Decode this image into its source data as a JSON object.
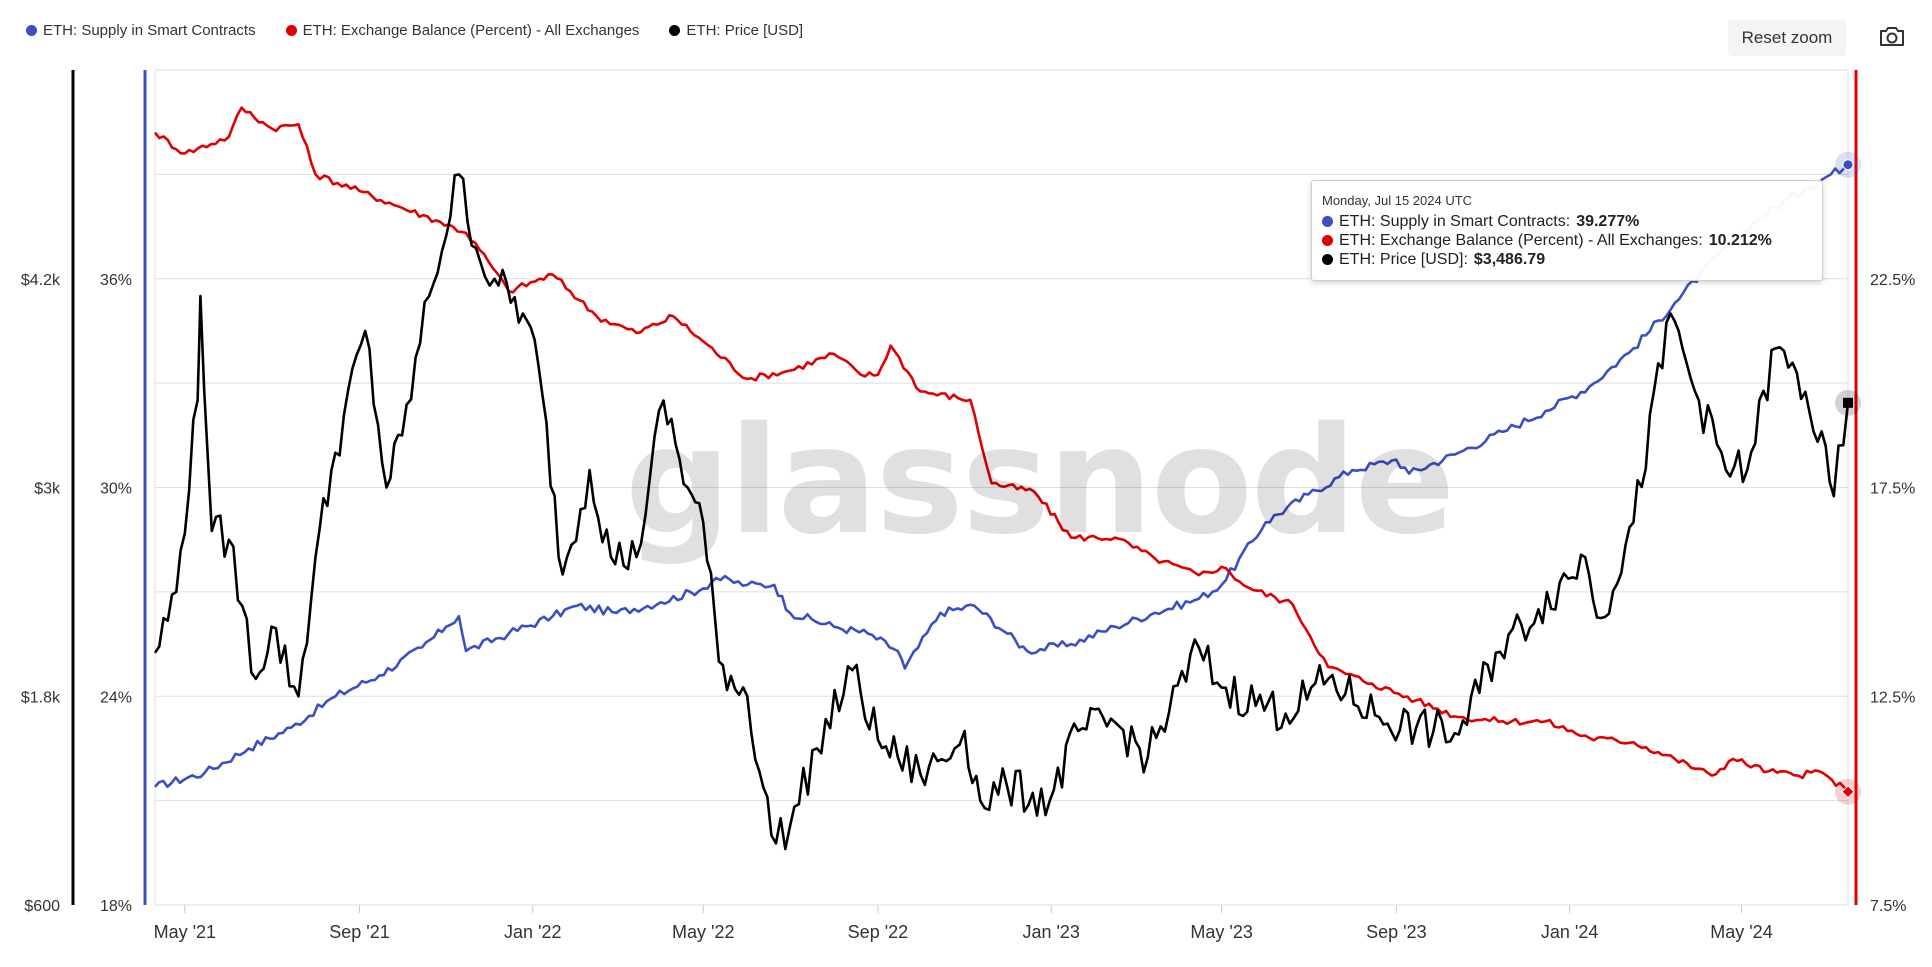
{
  "legend": {
    "items": [
      {
        "label": "ETH: Supply in Smart Contracts",
        "color": "#3b4fc4"
      },
      {
        "label": "ETH: Exchange Balance (Percent) - All Exchanges",
        "color": "#e00000"
      },
      {
        "label": "ETH: Price [USD]",
        "color": "#000000"
      }
    ]
  },
  "toolbar": {
    "reset_zoom": "Reset zoom",
    "camera_icon": "camera-icon"
  },
  "watermark": "glassnode",
  "tooltip": {
    "date": "Monday, Jul 15 2024 UTC",
    "rows": [
      {
        "label": "ETH: Supply in Smart Contracts:",
        "value": "39.277%",
        "color": "#3b4fc4"
      },
      {
        "label": "ETH: Exchange Balance (Percent) - All Exchanges:",
        "value": "10.212%",
        "color": "#e00000"
      },
      {
        "label": "ETH: Price [USD]:",
        "value": "$3,486.79",
        "color": "#000000"
      }
    ]
  },
  "chart_data": {
    "type": "line",
    "x_ticks": [
      "May '21",
      "Sep '21",
      "Jan '22",
      "May '22",
      "Sep '22",
      "Jan '23",
      "May '23",
      "Sep '23",
      "Jan '24",
      "May '24"
    ],
    "x_tick_dates": [
      "2021-05-01",
      "2021-09-01",
      "2022-01-01",
      "2022-05-01",
      "2022-09-01",
      "2023-01-01",
      "2023-05-01",
      "2023-09-01",
      "2024-01-01",
      "2024-05-01"
    ],
    "x_range": [
      "2021-04-10",
      "2024-07-15"
    ],
    "axes": {
      "price_usd": {
        "ticks": [
          "$600",
          "$1.8k",
          "$3k",
          "$4.2k"
        ],
        "values": [
          600,
          1800,
          3000,
          4200
        ],
        "range": [
          600,
          5400
        ],
        "position": "left-outer"
      },
      "smart_contracts_pct": {
        "ticks": [
          "18%",
          "24%",
          "30%",
          "36%"
        ],
        "values": [
          18,
          24,
          30,
          36
        ],
        "range": [
          18,
          42
        ],
        "position": "left-inner"
      },
      "exchange_balance_pct": {
        "ticks": [
          "7.5%",
          "12.5%",
          "17.5%",
          "22.5%"
        ],
        "values": [
          7.5,
          12.5,
          17.5,
          22.5
        ],
        "range": [
          7.5,
          27.5
        ],
        "position": "right"
      }
    },
    "grid": true,
    "legend_position": "top-left",
    "series": [
      {
        "name": "ETH: Supply in Smart Contracts",
        "axis": "smart_contracts_pct",
        "color": "#3b4fc4",
        "points": [
          [
            "2021-04-10",
            21.4
          ],
          [
            "2021-05-15",
            21.8
          ],
          [
            "2021-06-15",
            22.5
          ],
          [
            "2021-07-15",
            23.1
          ],
          [
            "2021-08-15",
            24.0
          ],
          [
            "2021-09-15",
            24.6
          ],
          [
            "2021-10-15",
            25.4
          ],
          [
            "2021-11-01",
            26.0
          ],
          [
            "2021-11-10",
            26.3
          ],
          [
            "2021-11-15",
            25.3
          ],
          [
            "2021-12-15",
            25.8
          ],
          [
            "2022-01-15",
            26.3
          ],
          [
            "2022-02-01",
            26.6
          ],
          [
            "2022-03-01",
            26.4
          ],
          [
            "2022-04-01",
            26.7
          ],
          [
            "2022-05-01",
            27.1
          ],
          [
            "2022-05-10",
            27.4
          ],
          [
            "2022-06-01",
            27.2
          ],
          [
            "2022-06-20",
            27.2
          ],
          [
            "2022-07-01",
            26.4
          ],
          [
            "2022-08-01",
            26.0
          ],
          [
            "2022-08-25",
            25.8
          ],
          [
            "2022-09-15",
            25.3
          ],
          [
            "2022-09-20",
            24.8
          ],
          [
            "2022-10-15",
            26.4
          ],
          [
            "2022-11-08",
            26.6
          ],
          [
            "2022-12-01",
            25.8
          ],
          [
            "2022-12-15",
            25.3
          ],
          [
            "2023-01-15",
            25.5
          ],
          [
            "2023-02-15",
            26.0
          ],
          [
            "2023-03-15",
            26.4
          ],
          [
            "2023-04-15",
            26.8
          ],
          [
            "2023-05-01",
            27.2
          ],
          [
            "2023-06-01",
            29.0
          ],
          [
            "2023-07-01",
            29.8
          ],
          [
            "2023-08-01",
            30.5
          ],
          [
            "2023-09-01",
            30.8
          ],
          [
            "2023-09-10",
            30.4
          ],
          [
            "2023-10-15",
            31.0
          ],
          [
            "2023-11-15",
            31.6
          ],
          [
            "2023-12-15",
            32.2
          ],
          [
            "2024-01-15",
            32.9
          ],
          [
            "2024-02-15",
            34.0
          ],
          [
            "2024-03-15",
            35.3
          ],
          [
            "2024-04-15",
            36.7
          ],
          [
            "2024-05-15",
            37.8
          ],
          [
            "2024-06-15",
            38.6
          ],
          [
            "2024-07-15",
            39.277
          ]
        ]
      },
      {
        "name": "ETH: Exchange Balance (Percent) - All Exchanges",
        "axis": "exchange_balance_pct",
        "color": "#e00000",
        "points": [
          [
            "2021-04-10",
            26.0
          ],
          [
            "2021-05-01",
            25.5
          ],
          [
            "2021-06-01",
            25.9
          ],
          [
            "2021-06-10",
            26.6
          ],
          [
            "2021-07-01",
            26.1
          ],
          [
            "2021-07-20",
            26.2
          ],
          [
            "2021-08-01",
            25.0
          ],
          [
            "2021-09-01",
            24.6
          ],
          [
            "2021-10-01",
            24.2
          ],
          [
            "2021-10-25",
            23.9
          ],
          [
            "2021-11-15",
            23.6
          ],
          [
            "2021-12-01",
            22.9
          ],
          [
            "2021-12-15",
            22.2
          ],
          [
            "2022-01-15",
            22.6
          ],
          [
            "2022-02-15",
            21.6
          ],
          [
            "2022-03-15",
            21.2
          ],
          [
            "2022-04-10",
            21.6
          ],
          [
            "2022-05-01",
            21.0
          ],
          [
            "2022-06-01",
            20.1
          ],
          [
            "2022-07-01",
            20.3
          ],
          [
            "2022-08-01",
            20.7
          ],
          [
            "2022-08-20",
            20.2
          ],
          [
            "2022-09-01",
            20.2
          ],
          [
            "2022-09-10",
            20.9
          ],
          [
            "2022-10-01",
            19.8
          ],
          [
            "2022-11-05",
            19.6
          ],
          [
            "2022-11-20",
            17.6
          ],
          [
            "2022-12-20",
            17.4
          ],
          [
            "2023-01-15",
            16.3
          ],
          [
            "2023-02-15",
            16.3
          ],
          [
            "2023-03-15",
            15.8
          ],
          [
            "2023-04-15",
            15.4
          ],
          [
            "2023-05-01",
            15.6
          ],
          [
            "2023-05-20",
            15.1
          ],
          [
            "2023-06-20",
            14.7
          ],
          [
            "2023-07-15",
            13.2
          ],
          [
            "2023-08-15",
            12.8
          ],
          [
            "2023-09-15",
            12.4
          ],
          [
            "2023-10-15",
            12.0
          ],
          [
            "2023-11-15",
            11.9
          ],
          [
            "2023-12-15",
            11.9
          ],
          [
            "2024-01-15",
            11.5
          ],
          [
            "2024-02-15",
            11.4
          ],
          [
            "2024-03-15",
            11.0
          ],
          [
            "2024-04-10",
            10.6
          ],
          [
            "2024-04-25",
            11.0
          ],
          [
            "2024-05-20",
            10.7
          ],
          [
            "2024-06-10",
            10.6
          ],
          [
            "2024-06-25",
            10.7
          ],
          [
            "2024-07-15",
            10.212
          ]
        ]
      },
      {
        "name": "ETH: Price [USD]",
        "axis": "price_usd",
        "color": "#000000",
        "points": [
          [
            "2021-04-10",
            2050
          ],
          [
            "2021-04-25",
            2400
          ],
          [
            "2021-05-10",
            3500
          ],
          [
            "2021-05-12",
            4100
          ],
          [
            "2021-05-20",
            2750
          ],
          [
            "2021-06-01",
            2700
          ],
          [
            "2021-06-20",
            1900
          ],
          [
            "2021-07-01",
            2200
          ],
          [
            "2021-07-20",
            1800
          ],
          [
            "2021-08-01",
            2600
          ],
          [
            "2021-08-15",
            3200
          ],
          [
            "2021-09-05",
            3900
          ],
          [
            "2021-09-20",
            3000
          ],
          [
            "2021-10-01",
            3300
          ],
          [
            "2021-10-20",
            4100
          ],
          [
            "2021-11-10",
            4800
          ],
          [
            "2021-11-25",
            4300
          ],
          [
            "2021-12-05",
            4200
          ],
          [
            "2021-12-25",
            4000
          ],
          [
            "2022-01-05",
            3700
          ],
          [
            "2022-01-22",
            2500
          ],
          [
            "2022-02-10",
            3100
          ],
          [
            "2022-02-25",
            2600
          ],
          [
            "2022-03-15",
            2600
          ],
          [
            "2022-04-03",
            3500
          ],
          [
            "2022-04-20",
            3000
          ],
          [
            "2022-05-01",
            2800
          ],
          [
            "2022-05-12",
            2000
          ],
          [
            "2022-06-01",
            1800
          ],
          [
            "2022-06-18",
            1000
          ],
          [
            "2022-07-01",
            1050
          ],
          [
            "2022-07-20",
            1500
          ],
          [
            "2022-08-14",
            1950
          ],
          [
            "2022-09-01",
            1550
          ],
          [
            "2022-09-15",
            1450
          ],
          [
            "2022-10-01",
            1350
          ],
          [
            "2022-10-25",
            1500
          ],
          [
            "2022-11-01",
            1600
          ],
          [
            "2022-11-12",
            1200
          ],
          [
            "2022-12-01",
            1280
          ],
          [
            "2022-12-31",
            1200
          ],
          [
            "2023-01-20",
            1600
          ],
          [
            "2023-02-15",
            1650
          ],
          [
            "2023-03-10",
            1450
          ],
          [
            "2023-04-15",
            2080
          ],
          [
            "2023-05-01",
            1850
          ],
          [
            "2023-06-15",
            1700
          ],
          [
            "2023-07-15",
            1900
          ],
          [
            "2023-08-20",
            1680
          ],
          [
            "2023-09-15",
            1620
          ],
          [
            "2023-10-15",
            1580
          ],
          [
            "2023-11-10",
            2050
          ],
          [
            "2023-12-10",
            2300
          ],
          [
            "2024-01-12",
            2600
          ],
          [
            "2024-01-23",
            2250
          ],
          [
            "2024-02-15",
            2800
          ],
          [
            "2024-03-12",
            4000
          ],
          [
            "2024-04-01",
            3500
          ],
          [
            "2024-04-20",
            3100
          ],
          [
            "2024-05-05",
            3100
          ],
          [
            "2024-05-25",
            3800
          ],
          [
            "2024-06-15",
            3550
          ],
          [
            "2024-07-05",
            2950
          ],
          [
            "2024-07-15",
            3486.79
          ]
        ]
      }
    ]
  }
}
